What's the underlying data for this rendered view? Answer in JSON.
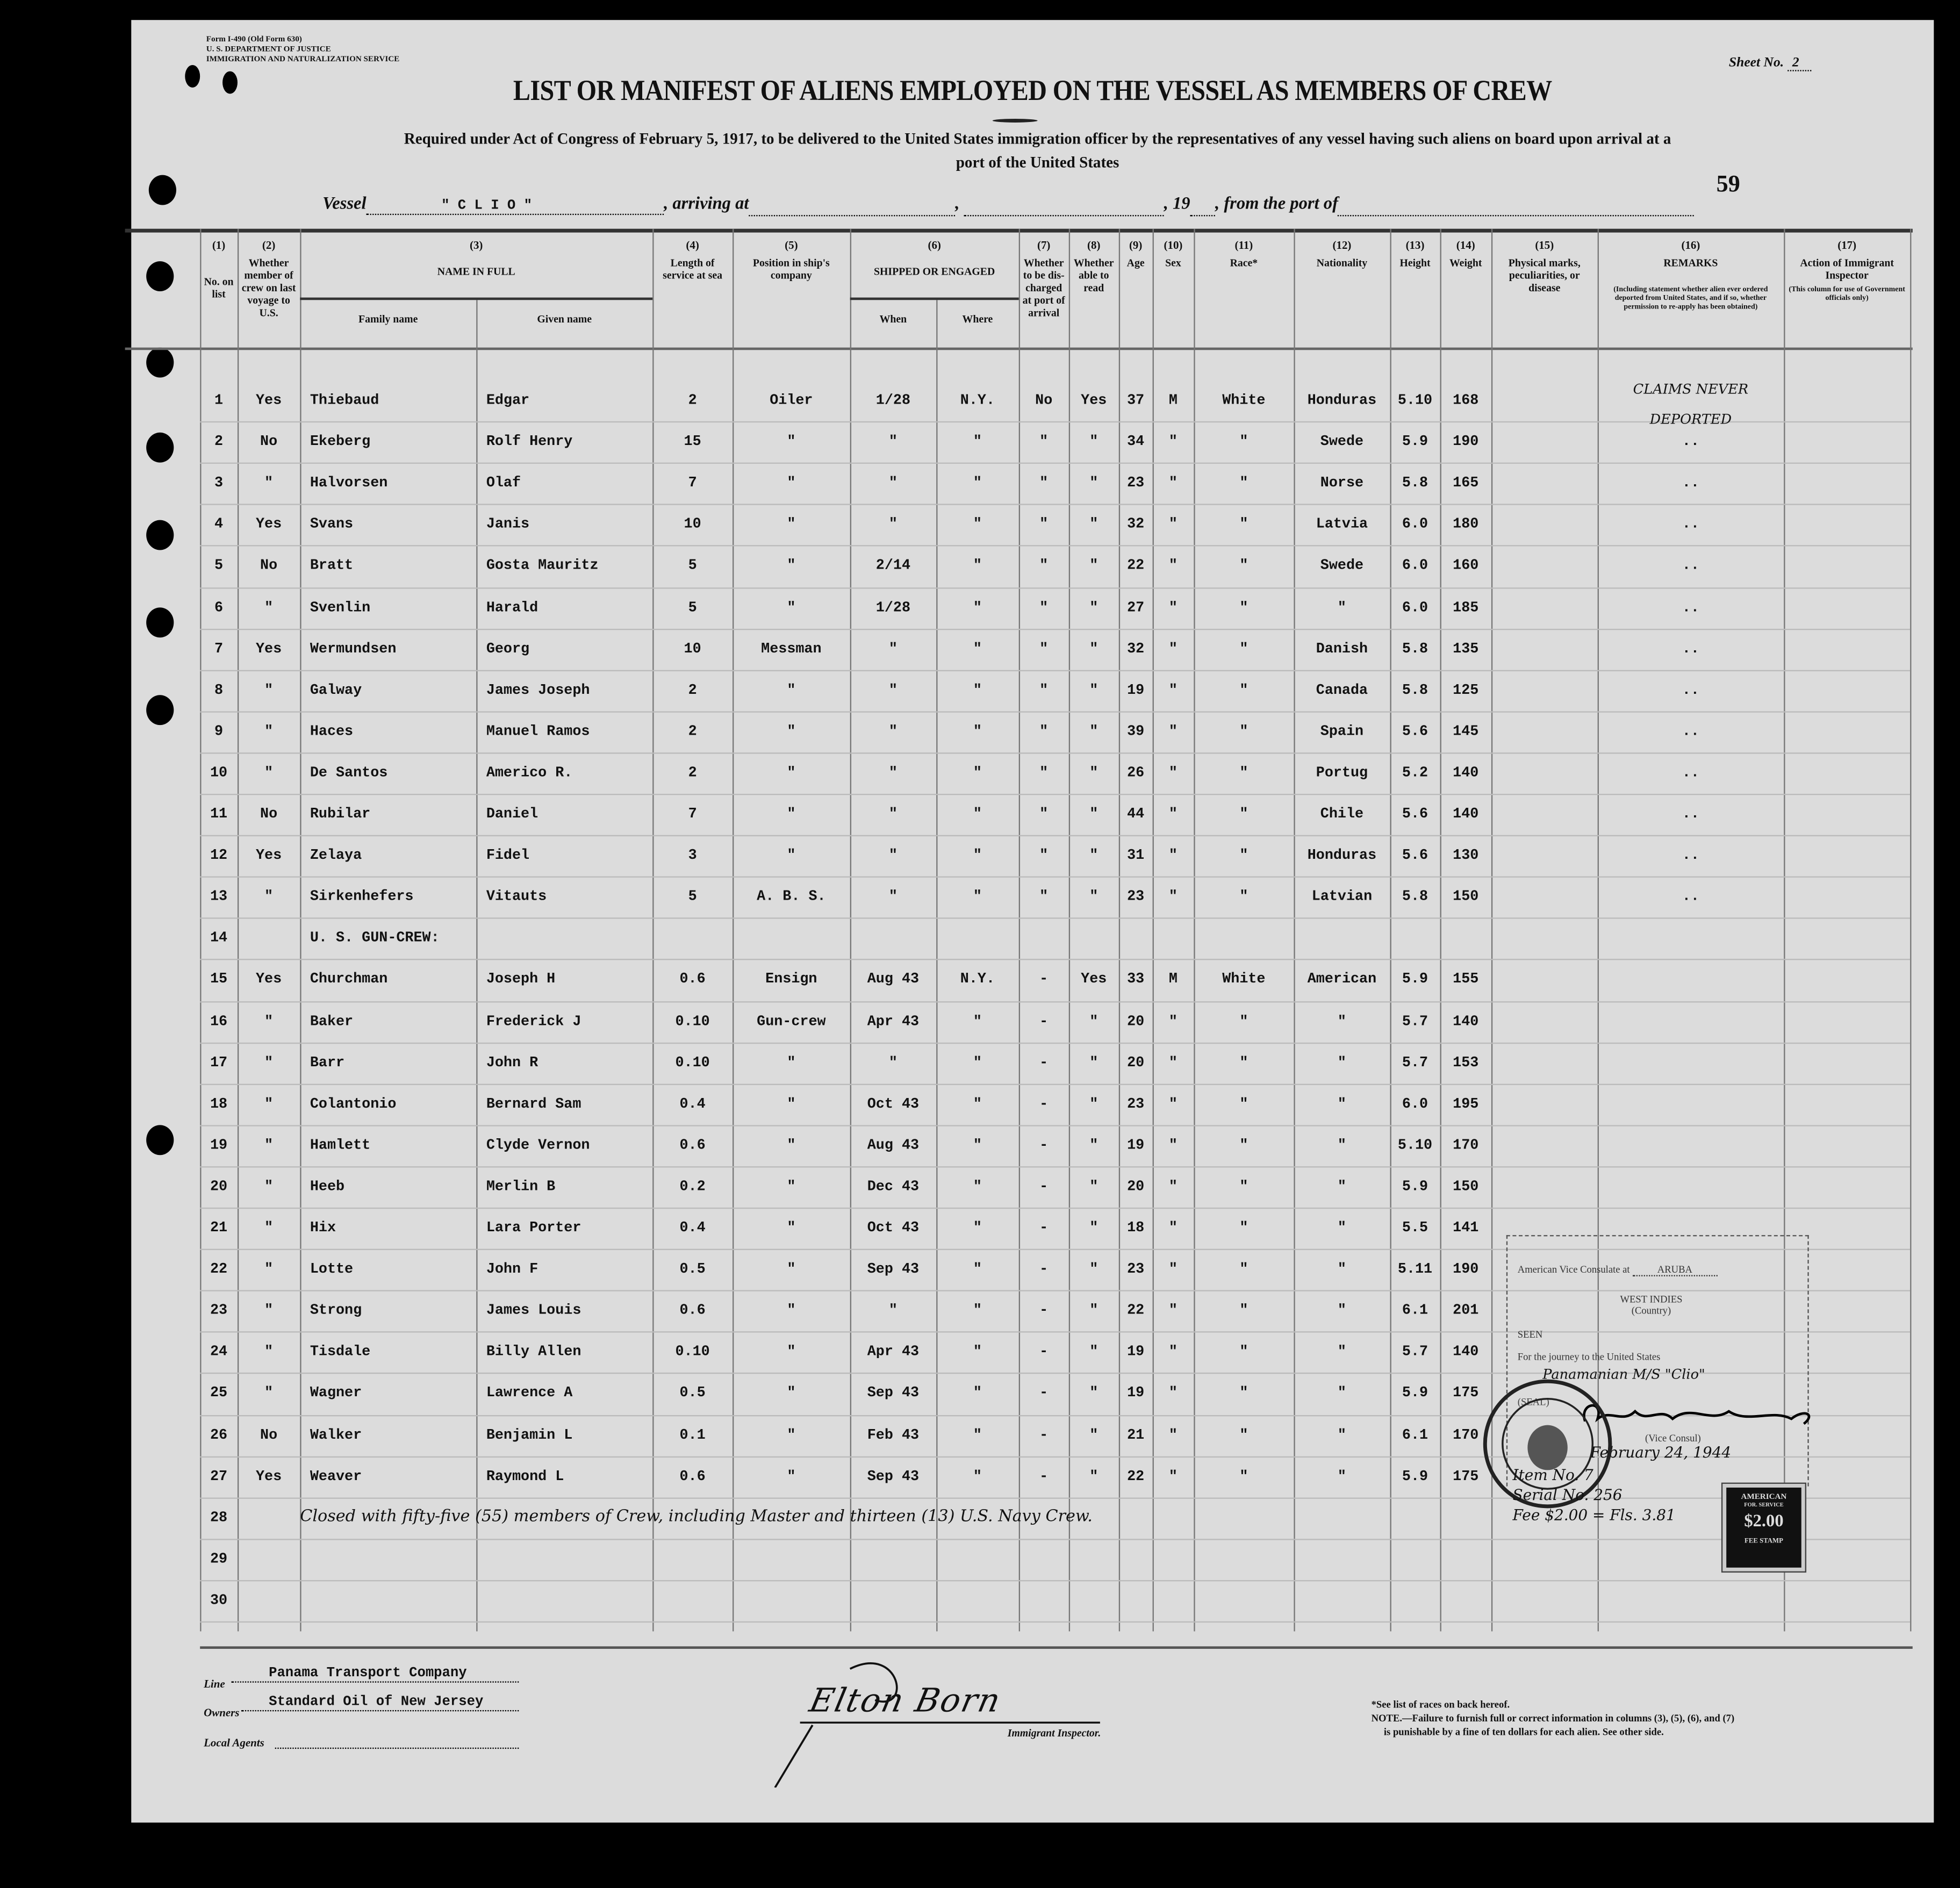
{
  "form": {
    "form_number": "Form I-490 (Old Form 630)",
    "department": "U. S. DEPARTMENT OF JUSTICE",
    "service": "IMMIGRATION AND NATURALIZATION SERVICE",
    "sheet_label": "Sheet No.",
    "sheet_number": "2",
    "title": "LIST OR MANIFEST OF ALIENS EMPLOYED ON THE VESSEL AS MEMBERS OF CREW",
    "subtitle_line1": "Required under Act of Congress of February 5, 1917, to be delivered to the United States immigration officer by the representatives of any vessel having such aliens on board upon arrival at a",
    "subtitle_line2": "port of the United States",
    "page_number": "59",
    "vessel_label": "Vessel",
    "vessel_name": "\" C L I O \"",
    "arriving_label": ", arriving at",
    "year_label": ", 19",
    "from_port_label": ", from the port of"
  },
  "columns": [
    {
      "num": "(1)",
      "label": "No. on list"
    },
    {
      "num": "(2)",
      "label": "Whether member of crew on last voyage to U.S."
    },
    {
      "num": "(3)",
      "label": "NAME IN FULL",
      "sub": [
        "Family name",
        "Given name"
      ]
    },
    {
      "num": "(4)",
      "label": "Length of service at sea"
    },
    {
      "num": "(5)",
      "label": "Position in ship's company"
    },
    {
      "num": "(6)",
      "label": "SHIPPED OR ENGAGED",
      "sub": [
        "When",
        "Where"
      ]
    },
    {
      "num": "(7)",
      "label": "Whether to be dis-charged at port of arrival"
    },
    {
      "num": "(8)",
      "label": "Whether able to read"
    },
    {
      "num": "(9)",
      "label": "Age"
    },
    {
      "num": "(10)",
      "label": "Sex"
    },
    {
      "num": "(11)",
      "label": "Race*"
    },
    {
      "num": "(12)",
      "label": "Nationality"
    },
    {
      "num": "(13)",
      "label": "Height"
    },
    {
      "num": "(14)",
      "label": "Weight"
    },
    {
      "num": "(15)",
      "label": "Physical marks, peculiarities, or disease"
    },
    {
      "num": "(16)",
      "label": "REMARKS",
      "note": "(Including statement whether alien ever ordered deported from United States, and if so, whether permission to re-apply has been obtained)"
    },
    {
      "num": "(17)",
      "label": "Action of Immigrant Inspector",
      "note": "(This column for use of Government officials only)"
    }
  ],
  "rows": [
    {
      "cells": [
        "1",
        "Yes",
        "Thiebaud",
        "Edgar",
        "2",
        "Oiler",
        "1/28",
        "N.Y.",
        "No",
        "Yes",
        "37",
        "M",
        "White",
        "Honduras",
        "5.10",
        "168",
        "",
        "CLAIMS NEVER DEPORTED",
        ""
      ]
    },
    {
      "cells": [
        "2",
        "No",
        "Ekeberg",
        "Rolf Henry",
        "15",
        "\"",
        "\"",
        "\"",
        "\"",
        "\"",
        "34",
        "\"",
        "\"",
        "Swede",
        "5.9",
        "190",
        "",
        "..",
        ""
      ]
    },
    {
      "cells": [
        "3",
        "\"",
        "Halvorsen",
        "Olaf",
        "7",
        "\"",
        "\"",
        "\"",
        "\"",
        "\"",
        "23",
        "\"",
        "\"",
        "Norse",
        "5.8",
        "165",
        "",
        "..",
        ""
      ]
    },
    {
      "cells": [
        "4",
        "Yes",
        "Svans",
        "Janis",
        "10",
        "\"",
        "\"",
        "\"",
        "\"",
        "\"",
        "32",
        "\"",
        "\"",
        "Latvia",
        "6.0",
        "180",
        "",
        "..",
        ""
      ]
    },
    {
      "cells": [
        "5",
        "No",
        "Bratt",
        "Gosta Mauritz",
        "5",
        "\"",
        "2/14",
        "\"",
        "\"",
        "\"",
        "22",
        "\"",
        "\"",
        "Swede",
        "6.0",
        "160",
        "",
        "..",
        ""
      ]
    },
    {
      "cells": [
        "6",
        "\"",
        "Svenlin",
        "Harald",
        "5",
        "\"",
        "1/28",
        "\"",
        "\"",
        "\"",
        "27",
        "\"",
        "\"",
        "\"",
        "6.0",
        "185",
        "",
        "..",
        ""
      ]
    },
    {
      "cells": [
        "7",
        "Yes",
        "Wermundsen",
        "Georg",
        "10",
        "Messman",
        "\"",
        "\"",
        "\"",
        "\"",
        "32",
        "\"",
        "\"",
        "Danish",
        "5.8",
        "135",
        "",
        "..",
        ""
      ]
    },
    {
      "cells": [
        "8",
        "\"",
        "Galway",
        "James Joseph",
        "2",
        "\"",
        "\"",
        "\"",
        "\"",
        "\"",
        "19",
        "\"",
        "\"",
        "Canada",
        "5.8",
        "125",
        "",
        "..",
        ""
      ]
    },
    {
      "cells": [
        "9",
        "\"",
        "Haces",
        "Manuel Ramos",
        "2",
        "\"",
        "\"",
        "\"",
        "\"",
        "\"",
        "39",
        "\"",
        "\"",
        "Spain",
        "5.6",
        "145",
        "",
        "..",
        ""
      ]
    },
    {
      "cells": [
        "10",
        "\"",
        "De Santos",
        "Americo R.",
        "2",
        "\"",
        "\"",
        "\"",
        "\"",
        "\"",
        "26",
        "\"",
        "\"",
        "Portug",
        "5.2",
        "140",
        "",
        "..",
        ""
      ]
    },
    {
      "cells": [
        "11",
        "No",
        "Rubilar",
        "Daniel",
        "7",
        "\"",
        "\"",
        "\"",
        "\"",
        "\"",
        "44",
        "\"",
        "\"",
        "Chile",
        "5.6",
        "140",
        "",
        "..",
        ""
      ]
    },
    {
      "cells": [
        "12",
        "Yes",
        "Zelaya",
        "Fidel",
        "3",
        "\"",
        "\"",
        "\"",
        "\"",
        "\"",
        "31",
        "\"",
        "\"",
        "Honduras",
        "5.6",
        "130",
        "",
        "..",
        ""
      ]
    },
    {
      "cells": [
        "13",
        "\"",
        "Sirkenhefers",
        "Vitauts",
        "5",
        "A. B. S.",
        "\"",
        "\"",
        "\"",
        "\"",
        "23",
        "\"",
        "\"",
        "Latvian",
        "5.8",
        "150",
        "",
        "..",
        ""
      ]
    },
    {
      "cells": [
        "14"
      ],
      "note": "U. S. GUN-CREW:"
    },
    {
      "cells": [
        "15",
        "Yes",
        "Churchman",
        "Joseph H",
        "0.6",
        "Ensign",
        "Aug 43",
        "N.Y.",
        "-",
        "Yes",
        "33",
        "M",
        "White",
        "American",
        "5.9",
        "155",
        "",
        "",
        ""
      ]
    },
    {
      "cells": [
        "16",
        "\"",
        "Baker",
        "Frederick J",
        "0.10",
        "Gun-crew",
        "Apr 43",
        "\"",
        "-",
        "\"",
        "20",
        "\"",
        "\"",
        "\"",
        "5.7",
        "140",
        "",
        "",
        ""
      ]
    },
    {
      "cells": [
        "17",
        "\"",
        "Barr",
        "John R",
        "0.10",
        "\"",
        "\"",
        "\"",
        "-",
        "\"",
        "20",
        "\"",
        "\"",
        "\"",
        "5.7",
        "153",
        "",
        "",
        ""
      ]
    },
    {
      "cells": [
        "18",
        "\"",
        "Colantonio",
        "Bernard Sam",
        "0.4",
        "\"",
        "Oct 43",
        "\"",
        "-",
        "\"",
        "23",
        "\"",
        "\"",
        "\"",
        "6.0",
        "195",
        "",
        "",
        ""
      ]
    },
    {
      "cells": [
        "19",
        "\"",
        "Hamlett",
        "Clyde Vernon",
        "0.6",
        "\"",
        "Aug 43",
        "\"",
        "-",
        "\"",
        "19",
        "\"",
        "\"",
        "\"",
        "5.10",
        "170",
        "",
        "",
        ""
      ]
    },
    {
      "cells": [
        "20",
        "\"",
        "Heeb",
        "Merlin B",
        "0.2",
        "\"",
        "Dec 43",
        "\"",
        "-",
        "\"",
        "20",
        "\"",
        "\"",
        "\"",
        "5.9",
        "150",
        "",
        "",
        ""
      ]
    },
    {
      "cells": [
        "21",
        "\"",
        "Hix",
        "Lara Porter",
        "0.4",
        "\"",
        "Oct 43",
        "\"",
        "-",
        "\"",
        "18",
        "\"",
        "\"",
        "\"",
        "5.5",
        "141",
        "",
        "",
        ""
      ]
    },
    {
      "cells": [
        "22",
        "\"",
        "Lotte",
        "John F",
        "0.5",
        "\"",
        "Sep 43",
        "\"",
        "-",
        "\"",
        "23",
        "\"",
        "\"",
        "\"",
        "5.11",
        "190",
        "",
        "",
        ""
      ]
    },
    {
      "cells": [
        "23",
        "\"",
        "Strong",
        "James Louis",
        "0.6",
        "\"",
        "\"",
        "\"",
        "-",
        "\"",
        "22",
        "\"",
        "\"",
        "\"",
        "6.1",
        "201",
        "",
        "",
        ""
      ]
    },
    {
      "cells": [
        "24",
        "\"",
        "Tisdale",
        "Billy Allen",
        "0.10",
        "\"",
        "Apr 43",
        "\"",
        "-",
        "\"",
        "19",
        "\"",
        "\"",
        "\"",
        "5.7",
        "140",
        "",
        "",
        ""
      ]
    },
    {
      "cells": [
        "25",
        "\"",
        "Wagner",
        "Lawrence A",
        "0.5",
        "\"",
        "Sep 43",
        "\"",
        "-",
        "\"",
        "19",
        "\"",
        "\"",
        "\"",
        "5.9",
        "175",
        "",
        "",
        ""
      ]
    },
    {
      "cells": [
        "26",
        "No",
        "Walker",
        "Benjamin L",
        "0.1",
        "\"",
        "Feb 43",
        "\"",
        "-",
        "\"",
        "21",
        "\"",
        "\"",
        "\"",
        "6.1",
        "170",
        "",
        "",
        ""
      ]
    },
    {
      "cells": [
        "27",
        "Yes",
        "Weaver",
        "Raymond L",
        "0.6",
        "\"",
        "Sep 43",
        "\"",
        "-",
        "\"",
        "22",
        "\"",
        "\"",
        "\"",
        "5.9",
        "175",
        "",
        "",
        ""
      ]
    },
    {
      "cells": [
        "28"
      ],
      "note": "Closed with fifty-five (55) members of Crew, including Master and thirteen (13) U.S. Navy Crew."
    },
    {
      "cells": [
        "29"
      ]
    },
    {
      "cells": [
        "30"
      ]
    }
  ],
  "consular": {
    "consulate_label": "American Vice Consulate at",
    "consulate_place": "ARUBA",
    "country": "WEST INDIES",
    "country_label": "(Country)",
    "seen_label": "SEEN",
    "journey_label": "For the journey to the United States",
    "vessel_handwritten": "Panamanian M/S \"Clio\"",
    "seal_label": "(SEAL)",
    "vice_consul_label": "(Vice Consul)",
    "date_handwritten": "February 24, 1944",
    "item_no": "Item No. 7",
    "serial_no": "Serial No. 256",
    "fee": "Fee $2.00 = Fls. 3.81",
    "seal_text": "AMERICAN VICE CONSULATE ARUBA, N.W.I.",
    "stamp_top": "AMERICAN",
    "stamp_sub": "FOR. SERVICE",
    "stamp_value": "$2.00",
    "stamp_bottom": "FEE STAMP"
  },
  "footer": {
    "line_label": "Line",
    "line_value": "Panama Transport Company",
    "owners_label": "Owners",
    "owners_value": "Standard Oil of New Jersey",
    "agents_label": "Local Agents",
    "inspector_signature": "Elton Born",
    "inspector_label": "Immigrant Inspector.",
    "races_note": "*See list of races on back hereof.",
    "note_line1": "NOTE.—Failure to furnish full or correct information in columns (3), (5), (6), and (7)",
    "note_line2": "is punishable by a fine of ten dollars for each alien. See other side."
  }
}
